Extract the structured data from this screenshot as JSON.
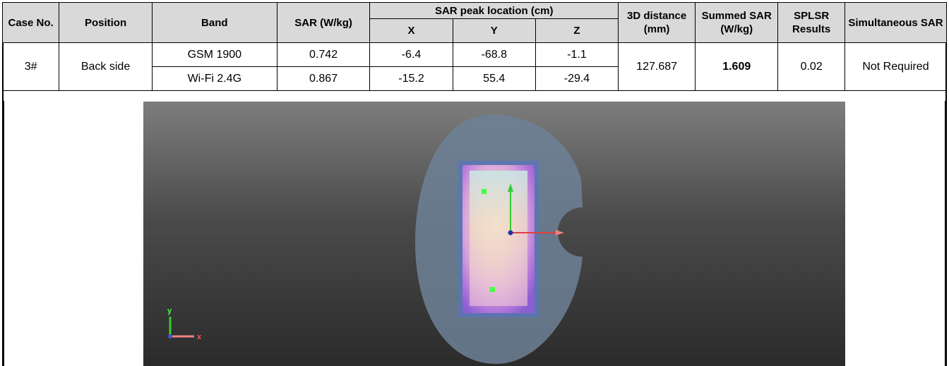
{
  "headers": {
    "case_no": "Case No.",
    "position": "Position",
    "band": "Band",
    "sar": "SAR (W/kg)",
    "peak_location": "SAR peak location (cm)",
    "x": "X",
    "y": "Y",
    "z": "Z",
    "distance_3d": "3D distance (mm)",
    "summed_sar": "Summed SAR (W/kg)",
    "splsr": "SPLSR Results",
    "simultaneous": "Simultaneous SAR"
  },
  "row": {
    "case_no": "3#",
    "position": "Back side",
    "distance_3d": "127.687",
    "summed_sar": "1.609",
    "splsr": "0.02",
    "simultaneous": "Not Required",
    "bands": [
      {
        "band": "GSM 1900",
        "sar": "0.742",
        "x": "-6.4",
        "y": "-68.8",
        "z": "-1.1"
      },
      {
        "band": "Wi-Fi 2.4G",
        "sar": "0.867",
        "x": "-15.2",
        "y": "55.4",
        "z": "-29.4"
      }
    ]
  },
  "figure": {
    "axis_y_label": "y",
    "axis_x_label": "x"
  }
}
